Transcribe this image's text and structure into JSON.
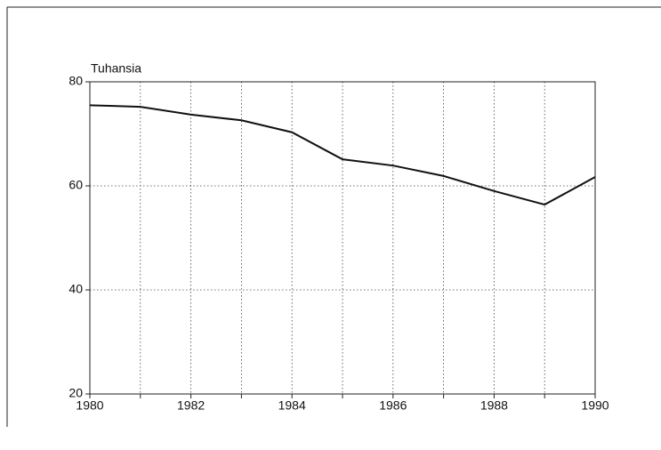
{
  "chart_data": {
    "type": "line",
    "title": "Tuhansia",
    "x": [
      1980,
      1981,
      1982,
      1983,
      1984,
      1985,
      1986,
      1987,
      1988,
      1989,
      1990
    ],
    "series": [
      {
        "name": null,
        "color": "#111111",
        "values": [
          75.5,
          75.2,
          73.7,
          72.6,
          70.3,
          65.1,
          63.9,
          61.9,
          59.0,
          56.4,
          61.7
        ]
      }
    ],
    "xlim": [
      1980,
      1990
    ],
    "xticks": [
      1980,
      1982,
      1984,
      1986,
      1988,
      1990
    ],
    "ylim": [
      20,
      80
    ],
    "yticks": [
      20,
      40,
      60,
      80
    ],
    "grid": true
  }
}
